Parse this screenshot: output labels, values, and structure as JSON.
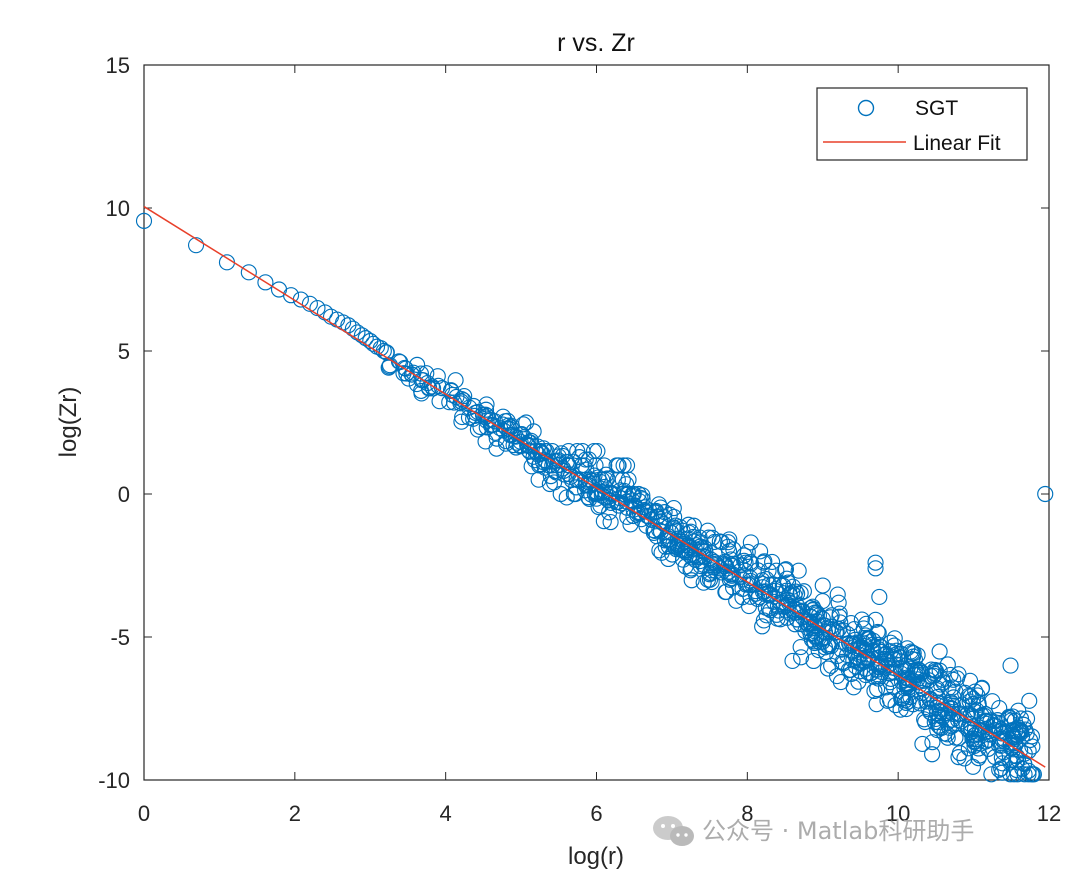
{
  "chart_data": {
    "type": "scatter",
    "title": "r vs. Zr",
    "xlabel": "log(r)",
    "ylabel": "log(Zr)",
    "xlim": [
      0,
      12
    ],
    "ylim": [
      -10,
      15
    ],
    "xticks": [
      "0",
      "2",
      "4",
      "6",
      "8",
      "10",
      "12"
    ],
    "yticks": [
      "-10",
      "-5",
      "0",
      "5",
      "10",
      "15"
    ],
    "grid": false,
    "legend_position": "top-right",
    "series": [
      {
        "name": "SGT",
        "marker": "circle-open",
        "color": "#0072bd",
        "points_description": "about 1000 points; discrete head then dense cloud around the fit line",
        "points": [
          [
            0.0,
            9.55
          ],
          [
            0.69,
            8.7
          ],
          [
            1.1,
            8.1
          ],
          [
            1.39,
            7.75
          ],
          [
            1.61,
            7.4
          ],
          [
            1.79,
            7.15
          ],
          [
            1.95,
            6.95
          ],
          [
            2.08,
            6.8
          ],
          [
            2.2,
            6.65
          ],
          [
            2.3,
            6.5
          ],
          [
            2.4,
            6.35
          ],
          [
            2.48,
            6.2
          ],
          [
            2.56,
            6.1
          ],
          [
            2.64,
            6.0
          ],
          [
            2.71,
            5.9
          ],
          [
            2.77,
            5.78
          ],
          [
            2.83,
            5.65
          ],
          [
            2.89,
            5.55
          ],
          [
            2.94,
            5.45
          ],
          [
            3.0,
            5.35
          ],
          [
            3.04,
            5.25
          ],
          [
            3.09,
            5.15
          ],
          [
            3.14,
            5.1
          ],
          [
            3.18,
            5.0
          ],
          [
            3.22,
            4.95
          ],
          [
            11.95,
            0.0
          ]
        ],
        "cloud": {
          "x_start": 3.2,
          "x_end": 11.8,
          "count": 960,
          "anomalies": [
            [
              9.7,
              -2.4
            ],
            [
              9.7,
              -2.6
            ],
            [
              9.75,
              -3.6
            ],
            [
              9.7,
              -4.4
            ],
            [
              9.95,
              -5.3
            ],
            [
              9.9,
              -5.2
            ],
            [
              10.8,
              -6.3
            ],
            [
              10.8,
              -7.7
            ],
            [
              10.45,
              -9.1
            ],
            [
              10.8,
              -9.2
            ],
            [
              9.0,
              -3.2
            ],
            [
              8.75,
              -3.4
            ]
          ]
        }
      },
      {
        "name": "Linear Fit",
        "type": "line",
        "color": "#e8402a",
        "x": [
          0,
          11.95
        ],
        "y": [
          10.05,
          -9.55
        ]
      }
    ]
  },
  "watermark": {
    "text": "公众号 · Matlab科研助手",
    "icon": "wechat-icon"
  }
}
